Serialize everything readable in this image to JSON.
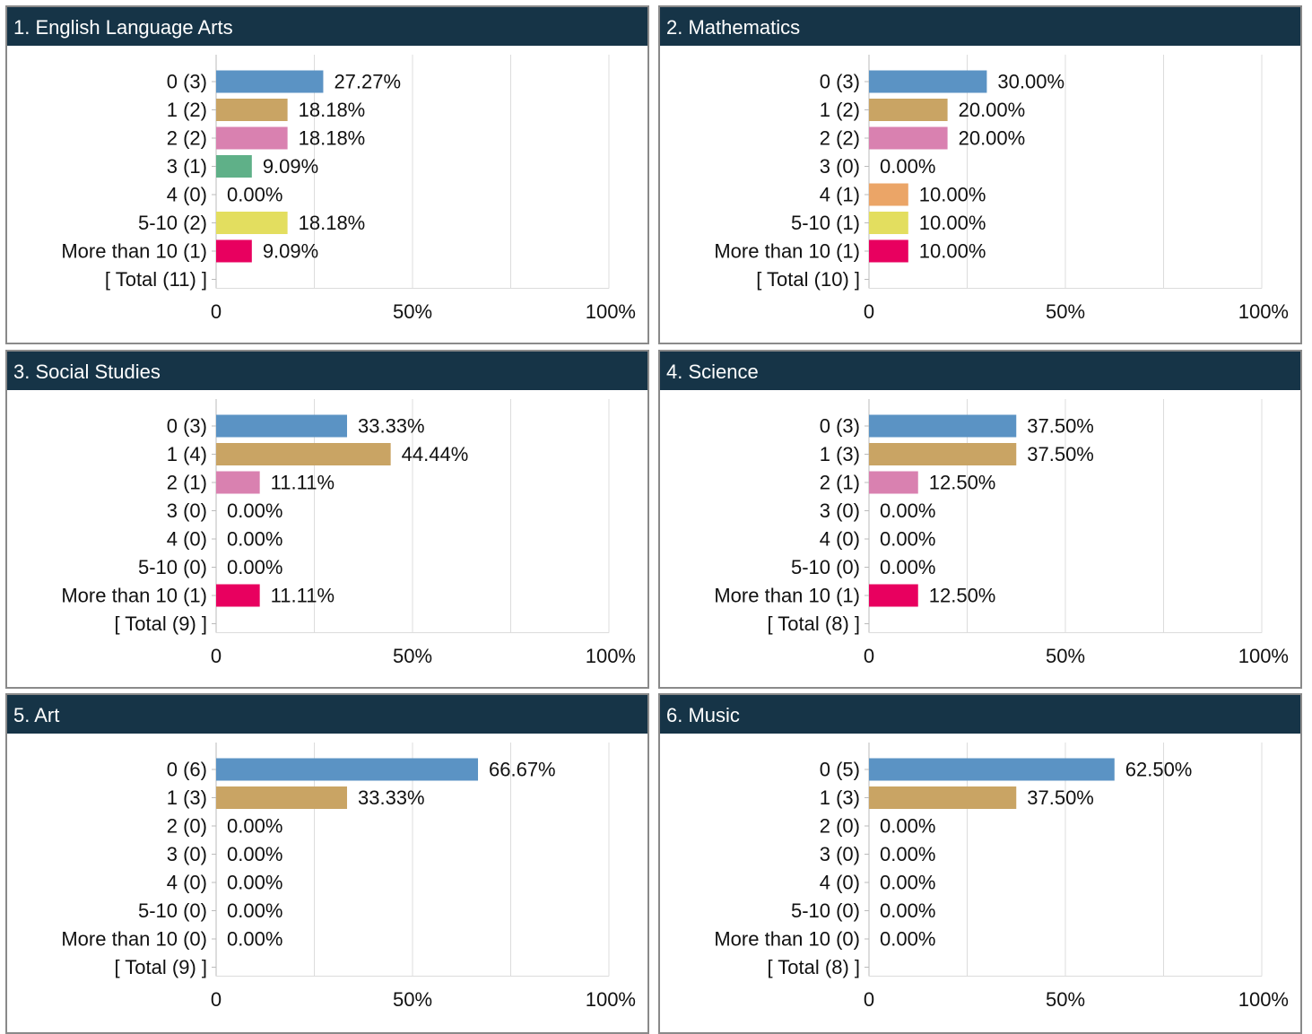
{
  "chart_data": [
    {
      "type": "bar",
      "orientation": "horizontal",
      "title": "1. English Language Arts",
      "categories": [
        "0 (3)",
        "1 (2)",
        "2 (2)",
        "3 (1)",
        "4 (0)",
        "5-10 (2)",
        "More than 10 (1)",
        "[ Total (11) ]"
      ],
      "values": [
        27.27,
        18.18,
        18.18,
        9.09,
        0,
        18.18,
        9.09,
        null
      ],
      "value_labels": [
        "27.27%",
        "18.18%",
        "18.18%",
        "9.09%",
        "0.00%",
        "18.18%",
        "9.09%",
        null
      ],
      "colors": [
        "#5b93c4",
        "#c9a464",
        "#d981b0",
        "#5fb088",
        "#eba567",
        "#e3de5f",
        "#e8005f",
        null
      ],
      "xlim": [
        0,
        100
      ],
      "xticks": [
        0,
        {
          "value": 50,
          "label": "50%"
        },
        {
          "value": 100,
          "label": "100%"
        }
      ],
      "xminor": [
        25,
        75
      ],
      "grid": true
    },
    {
      "type": "bar",
      "orientation": "horizontal",
      "title": "2. Mathematics",
      "categories": [
        "0 (3)",
        "1 (2)",
        "2 (2)",
        "3 (0)",
        "4 (1)",
        "5-10 (1)",
        "More than 10 (1)",
        "[ Total (10) ]"
      ],
      "values": [
        30,
        20,
        20,
        0,
        10,
        10,
        10,
        null
      ],
      "value_labels": [
        "30.00%",
        "20.00%",
        "20.00%",
        "0.00%",
        "10.00%",
        "10.00%",
        "10.00%",
        null
      ],
      "colors": [
        "#5b93c4",
        "#c9a464",
        "#d981b0",
        "#5fb088",
        "#eba567",
        "#e3de5f",
        "#e8005f",
        null
      ],
      "xlim": [
        0,
        100
      ],
      "xticks": [
        0,
        {
          "value": 50,
          "label": "50%"
        },
        {
          "value": 100,
          "label": "100%"
        }
      ],
      "xminor": [
        25,
        75
      ],
      "grid": true
    },
    {
      "type": "bar",
      "orientation": "horizontal",
      "title": "3. Social Studies",
      "categories": [
        "0 (3)",
        "1 (4)",
        "2 (1)",
        "3 (0)",
        "4 (0)",
        "5-10 (0)",
        "More than 10 (1)",
        "[ Total (9) ]"
      ],
      "values": [
        33.33,
        44.44,
        11.11,
        0,
        0,
        0,
        11.11,
        null
      ],
      "value_labels": [
        "33.33%",
        "44.44%",
        "11.11%",
        "0.00%",
        "0.00%",
        "0.00%",
        "11.11%",
        null
      ],
      "colors": [
        "#5b93c4",
        "#c9a464",
        "#d981b0",
        "#5fb088",
        "#eba567",
        "#e3de5f",
        "#e8005f",
        null
      ],
      "xlim": [
        0,
        100
      ],
      "xticks": [
        0,
        {
          "value": 50,
          "label": "50%"
        },
        {
          "value": 100,
          "label": "100%"
        }
      ],
      "xminor": [
        25,
        75
      ],
      "grid": true
    },
    {
      "type": "bar",
      "orientation": "horizontal",
      "title": "4. Science",
      "categories": [
        "0 (3)",
        "1 (3)",
        "2 (1)",
        "3 (0)",
        "4 (0)",
        "5-10 (0)",
        "More than 10 (1)",
        "[ Total (8) ]"
      ],
      "values": [
        37.5,
        37.5,
        12.5,
        0,
        0,
        0,
        12.5,
        null
      ],
      "value_labels": [
        "37.50%",
        "37.50%",
        "12.50%",
        "0.00%",
        "0.00%",
        "0.00%",
        "12.50%",
        null
      ],
      "colors": [
        "#5b93c4",
        "#c9a464",
        "#d981b0",
        "#5fb088",
        "#eba567",
        "#e3de5f",
        "#e8005f",
        null
      ],
      "xlim": [
        0,
        100
      ],
      "xticks": [
        0,
        {
          "value": 50,
          "label": "50%"
        },
        {
          "value": 100,
          "label": "100%"
        }
      ],
      "xminor": [
        25,
        75
      ],
      "grid": true
    },
    {
      "type": "bar",
      "orientation": "horizontal",
      "title": "5. Art",
      "categories": [
        "0 (6)",
        "1 (3)",
        "2 (0)",
        "3 (0)",
        "4 (0)",
        "5-10 (0)",
        "More than 10 (0)",
        "[ Total (9) ]"
      ],
      "values": [
        66.67,
        33.33,
        0,
        0,
        0,
        0,
        0,
        null
      ],
      "value_labels": [
        "66.67%",
        "33.33%",
        "0.00%",
        "0.00%",
        "0.00%",
        "0.00%",
        "0.00%",
        null
      ],
      "colors": [
        "#5b93c4",
        "#c9a464",
        "#d981b0",
        "#5fb088",
        "#eba567",
        "#e3de5f",
        "#e8005f",
        null
      ],
      "xlim": [
        0,
        100
      ],
      "xticks": [
        0,
        {
          "value": 50,
          "label": "50%"
        },
        {
          "value": 100,
          "label": "100%"
        }
      ],
      "xminor": [
        25,
        75
      ],
      "grid": true
    },
    {
      "type": "bar",
      "orientation": "horizontal",
      "title": "6. Music",
      "categories": [
        "0 (5)",
        "1 (3)",
        "2 (0)",
        "3 (0)",
        "4 (0)",
        "5-10 (0)",
        "More than 10 (0)",
        "[ Total (8) ]"
      ],
      "values": [
        62.5,
        37.5,
        0,
        0,
        0,
        0,
        0,
        null
      ],
      "value_labels": [
        "62.50%",
        "37.50%",
        "0.00%",
        "0.00%",
        "0.00%",
        "0.00%",
        "0.00%",
        null
      ],
      "colors": [
        "#5b93c4",
        "#c9a464",
        "#d981b0",
        "#5fb088",
        "#eba567",
        "#e3de5f",
        "#e8005f",
        null
      ],
      "xlim": [
        0,
        100
      ],
      "xticks": [
        0,
        {
          "value": 50,
          "label": "50%"
        },
        {
          "value": 100,
          "label": "100%"
        }
      ],
      "xminor": [
        25,
        75
      ],
      "grid": true
    }
  ]
}
